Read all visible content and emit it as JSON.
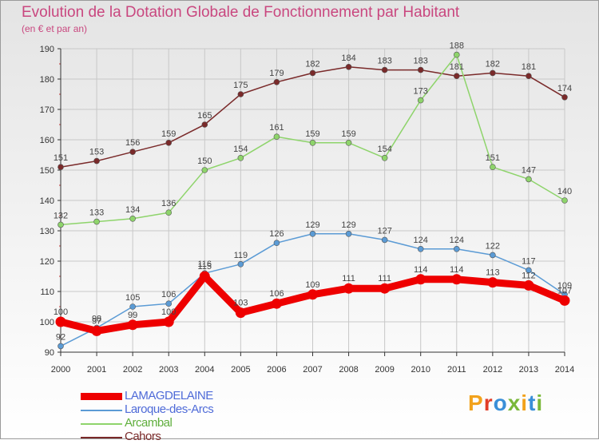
{
  "title": "Evolution de la Dotation Globale de Fonctionnement par Habitant",
  "subtitle": "(en € et par an)",
  "logo": "Proxiti",
  "colors": {
    "title": "#c9477f",
    "grid": "#c8c8c8",
    "axis": "#333333",
    "text": "#333333"
  },
  "chart_data": {
    "type": "line",
    "x": [
      "2000",
      "2001",
      "2002",
      "2003",
      "2004",
      "2005",
      "2006",
      "2007",
      "2008",
      "2009",
      "2010",
      "2011",
      "2012",
      "2013",
      "2014"
    ],
    "ylim": [
      90,
      190
    ],
    "yticks": [
      90,
      100,
      110,
      120,
      130,
      140,
      150,
      160,
      170,
      180,
      190
    ],
    "grid": true,
    "legend_position": "bottom-left",
    "series": [
      {
        "name": "LAMAGDELAINE",
        "color": "#ee0000",
        "label_color": "#4f6bd8",
        "emphasis": true,
        "values": [
          100,
          97,
          99,
          100,
          115,
          103,
          106,
          109,
          111,
          111,
          114,
          114,
          113,
          112,
          107
        ]
      },
      {
        "name": "Laroque-des-Arcs",
        "color": "#5b9bd5",
        "label_color": "#4f6bd8",
        "values": [
          92,
          98,
          105,
          106,
          116,
          119,
          126,
          129,
          129,
          127,
          124,
          124,
          122,
          117,
          109
        ]
      },
      {
        "name": "Arcambal",
        "color": "#8ed46b",
        "label_color": "#5fae3c",
        "values": [
          132,
          133,
          134,
          136,
          150,
          154,
          161,
          159,
          159,
          154,
          173,
          188,
          151,
          147,
          140
        ]
      },
      {
        "name": "Cahors",
        "color": "#7a2a2a",
        "label_color": "#7a2a2a",
        "values": [
          151,
          153,
          156,
          159,
          165,
          175,
          179,
          182,
          184,
          183,
          183,
          181,
          182,
          181,
          174
        ]
      }
    ]
  }
}
